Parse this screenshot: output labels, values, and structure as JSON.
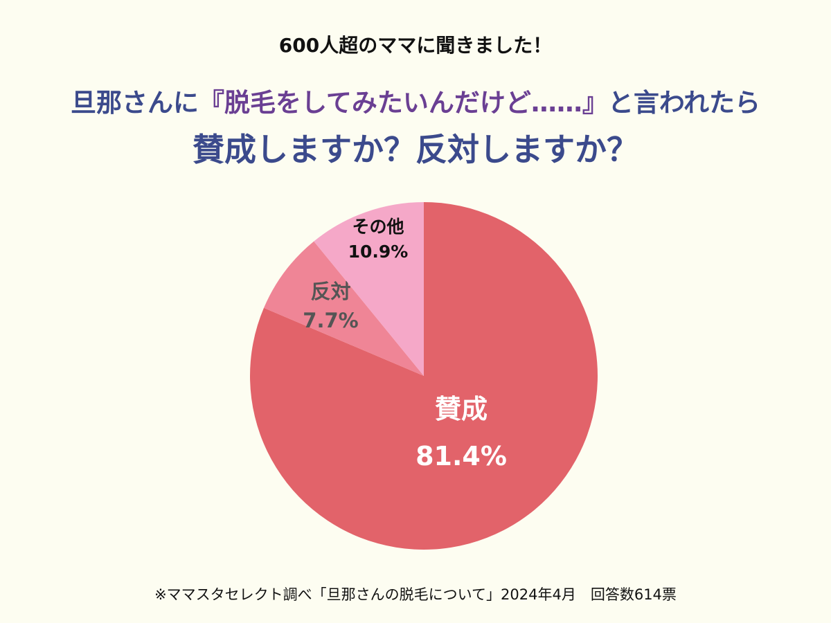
{
  "header": {
    "subtitle": "600人超のママに聞きました！",
    "title_line1_before": "旦那さんに",
    "title_line1_quote": "『脱毛をしてみたいんだけど……』",
    "title_line1_after": "と言われたら",
    "title_line2": "賛成しますか？反対しますか？"
  },
  "chart_data": {
    "type": "pie",
    "slices": [
      {
        "label": "賛成",
        "value": 81.4,
        "value_text": "81.4%",
        "color": "#e2636a",
        "text_color": "#ffffff"
      },
      {
        "label": "反対",
        "value": 7.7,
        "value_text": "7.7%",
        "color": "#ef8596",
        "text_color": "#555555"
      },
      {
        "label": "その他",
        "value": 10.9,
        "value_text": "10.9%",
        "color": "#f5a8c8",
        "text_color": "#111111"
      }
    ],
    "start": "12 o'clock",
    "direction": "clockwise"
  },
  "footer": {
    "note": "※ママスタセレクト調べ「旦那さんの脱毛について」2024年4月　回答数614票"
  },
  "colors": {
    "background": "#fdfdf1",
    "title": "#3b4a8c",
    "title_quote": "#6a3f93"
  }
}
